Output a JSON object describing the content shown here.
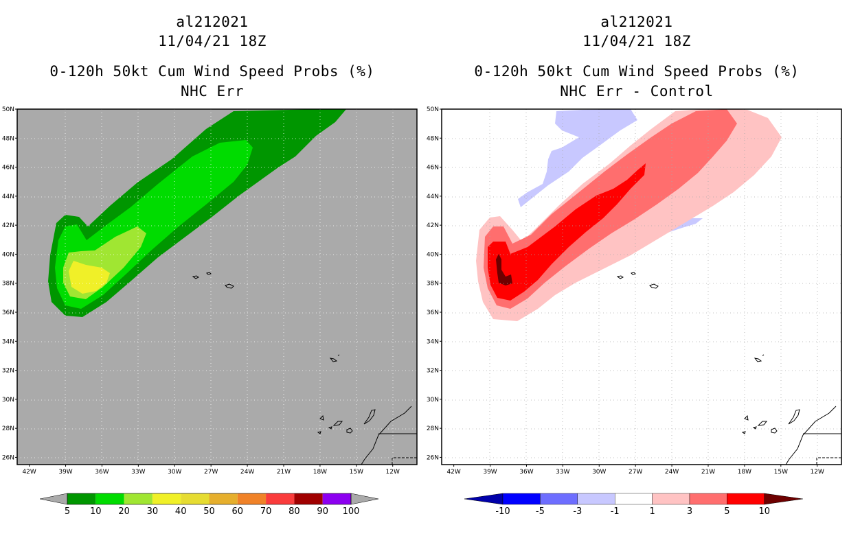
{
  "chart_data": [
    {
      "type": "heatmap",
      "storm": "al212021",
      "datetime": "11/04/21 18Z",
      "title": "0-120h 50kt Cum Wind Speed Probs (%)",
      "subtitle": "NHC Err",
      "lat_labels": [
        "50N",
        "48N",
        "46N",
        "44N",
        "42N",
        "40N",
        "38N",
        "36N",
        "34N",
        "32N",
        "30N",
        "28N",
        "26N"
      ],
      "lon_labels": [
        "42W",
        "39W",
        "36W",
        "33W",
        "30W",
        "27W",
        "24W",
        "21W",
        "18W",
        "15W",
        "12W"
      ],
      "xlim": [
        -43.0,
        -10.0
      ],
      "ylim": [
        25.5,
        50.0
      ],
      "background_color": "#aaaaaa",
      "colorbar": {
        "labels": [
          "5",
          "10",
          "20",
          "30",
          "40",
          "50",
          "60",
          "70",
          "80",
          "90",
          "100"
        ],
        "colors": [
          "#009600",
          "#00dc00",
          "#a0e632",
          "#f0f028",
          "#e6dc32",
          "#e6af2d",
          "#f08228",
          "#fa3c3c",
          "#a00000",
          "#8c00f0"
        ],
        "end_color": "#aaaaaa"
      },
      "contours": [
        {
          "level": "5",
          "color": "#009600"
        },
        {
          "level": "10",
          "color": "#00dc00"
        },
        {
          "level": "20",
          "color": "#a0e632"
        },
        {
          "level": "30",
          "color": "#f0f028"
        }
      ]
    },
    {
      "type": "heatmap",
      "storm": "al212021",
      "datetime": "11/04/21 18Z",
      "title": "0-120h 50kt Cum Wind Speed Probs (%)",
      "subtitle": "NHC Err - Control",
      "lat_labels": [
        "50N",
        "48N",
        "46N",
        "44N",
        "42N",
        "40N",
        "38N",
        "36N",
        "34N",
        "32N",
        "30N",
        "28N",
        "26N"
      ],
      "lon_labels": [
        "42W",
        "39W",
        "36W",
        "33W",
        "30W",
        "27W",
        "24W",
        "21W",
        "18W",
        "15W",
        "12W"
      ],
      "xlim": [
        -43.0,
        -10.0
      ],
      "ylim": [
        25.5,
        50.0
      ],
      "background_color": "#ffffff",
      "colorbar": {
        "labels": [
          "-10",
          "-5",
          "-3",
          "-1",
          "1",
          "3",
          "5",
          "10"
        ],
        "colors": [
          "#0000aa",
          "#0000ff",
          "#6e6eff",
          "#c8c8ff",
          "#ffffff",
          "#ffc3c3",
          "#ff6e6e",
          "#ff0000",
          "#6e0000"
        ],
        "end_colors": [
          "#0000aa",
          "#6e0000"
        ]
      },
      "contours": [
        {
          "level": "-1",
          "color": "#c8c8ff"
        },
        {
          "level": "1",
          "color": "#ffc3c3"
        },
        {
          "level": "3",
          "color": "#ff6e6e"
        },
        {
          "level": "5",
          "color": "#ff0000"
        },
        {
          "level": "10",
          "color": "#6e0000"
        }
      ]
    }
  ]
}
